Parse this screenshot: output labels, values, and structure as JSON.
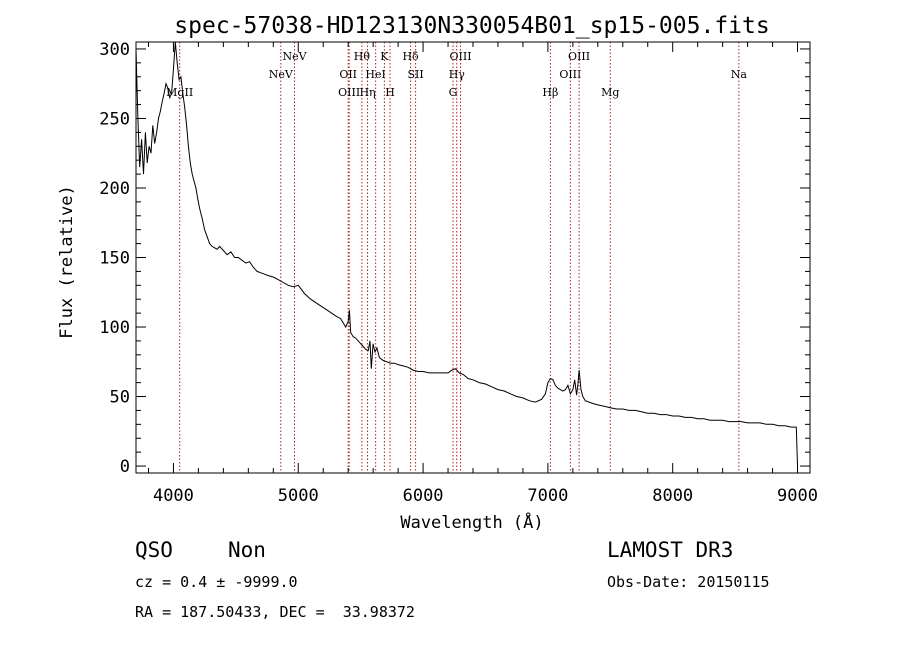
{
  "chart_data": {
    "type": "line",
    "title": "spec-57038-HD123130N330054B01_sp15-005.fits",
    "xlabel": "Wavelength (Å)",
    "ylabel": "Flux (relative)",
    "xlim": [
      3700,
      9100
    ],
    "ylim": [
      -5,
      305
    ],
    "xticks": [
      4000,
      5000,
      6000,
      7000,
      8000,
      9000
    ],
    "yticks": [
      0,
      50,
      100,
      150,
      200,
      250,
      300
    ],
    "spectrum": {
      "x": [
        3700,
        3715,
        3730,
        3745,
        3760,
        3775,
        3790,
        3805,
        3820,
        3835,
        3850,
        3865,
        3880,
        3895,
        3910,
        3925,
        3940,
        3955,
        3970,
        3985,
        4000,
        4015,
        4030,
        4045,
        4060,
        4075,
        4090,
        4105,
        4120,
        4135,
        4150,
        4165,
        4180,
        4195,
        4210,
        4230,
        4250,
        4270,
        4290,
        4310,
        4330,
        4350,
        4370,
        4400,
        4430,
        4460,
        4490,
        4520,
        4550,
        4580,
        4610,
        4640,
        4670,
        4700,
        4730,
        4760,
        4800,
        4840,
        4880,
        4920,
        4960,
        5000,
        5050,
        5100,
        5150,
        5200,
        5250,
        5300,
        5340,
        5380,
        5400,
        5410,
        5420,
        5440,
        5460,
        5480,
        5500,
        5520,
        5540,
        5560,
        5575,
        5585,
        5600,
        5615,
        5630,
        5650,
        5680,
        5710,
        5740,
        5770,
        5800,
        5840,
        5880,
        5920,
        5960,
        6000,
        6050,
        6100,
        6150,
        6200,
        6230,
        6260,
        6290,
        6320,
        6360,
        6400,
        6450,
        6500,
        6550,
        6600,
        6650,
        6700,
        6750,
        6800,
        6850,
        6900,
        6950,
        6980,
        7000,
        7020,
        7040,
        7060,
        7080,
        7100,
        7120,
        7140,
        7160,
        7180,
        7200,
        7215,
        7230,
        7240,
        7250,
        7265,
        7280,
        7300,
        7330,
        7360,
        7400,
        7450,
        7500,
        7550,
        7600,
        7650,
        7700,
        7750,
        7800,
        7850,
        7900,
        7950,
        8000,
        8050,
        8100,
        8150,
        8200,
        8250,
        8300,
        8350,
        8400,
        8450,
        8500,
        8550,
        8600,
        8650,
        8700,
        8750,
        8800,
        8850,
        8900,
        8950,
        8990,
        9000
      ],
      "y": [
        300,
        250,
        215,
        235,
        210,
        240,
        218,
        230,
        225,
        245,
        232,
        240,
        250,
        255,
        262,
        268,
        275,
        272,
        265,
        268,
        285,
        305,
        290,
        278,
        280,
        268,
        258,
        245,
        230,
        218,
        210,
        205,
        200,
        192,
        185,
        178,
        170,
        165,
        160,
        158,
        157,
        156,
        158,
        155,
        152,
        154,
        150,
        150,
        148,
        146,
        147,
        143,
        140,
        139,
        138,
        137,
        136,
        134,
        132,
        130,
        129,
        130,
        124,
        120,
        117,
        114,
        111,
        108,
        106,
        100,
        104,
        112,
        96,
        93,
        92,
        90,
        88,
        86,
        84,
        83,
        90,
        70,
        88,
        82,
        85,
        78,
        76,
        75,
        74,
        74,
        73,
        72,
        71,
        69,
        68,
        68,
        67,
        67,
        67,
        67,
        69,
        70,
        67,
        66,
        63,
        62,
        60,
        59,
        57,
        55,
        54,
        52,
        50,
        49,
        47,
        46,
        48,
        52,
        60,
        63,
        62,
        58,
        56,
        55,
        54,
        55,
        58,
        52,
        55,
        62,
        51,
        58,
        69,
        55,
        50,
        47,
        46,
        45,
        44,
        43,
        42,
        41,
        41,
        40,
        40,
        39,
        38,
        38,
        37,
        37,
        36,
        36,
        35,
        35,
        34,
        34,
        33,
        33,
        33,
        32,
        32,
        32,
        31,
        31,
        31,
        30,
        30,
        29,
        29,
        28,
        28,
        0
      ]
    },
    "emission_lines": [
      {
        "label": "MgII",
        "x": 4050,
        "row": 3
      },
      {
        "label": "NeV",
        "x": 4860,
        "row": 2
      },
      {
        "label": "NeV",
        "x": 4970,
        "row": 1
      },
      {
        "label": "OII",
        "x": 5400,
        "row": 2
      },
      {
        "label": "OIII",
        "x": 5408,
        "row": 3
      },
      {
        "label": "Hθ",
        "x": 5510,
        "row": 1
      },
      {
        "label": "Hη",
        "x": 5555,
        "row": 3
      },
      {
        "label": "HeI",
        "x": 5620,
        "row": 2
      },
      {
        "label": "K",
        "x": 5690,
        "row": 1
      },
      {
        "label": "H",
        "x": 5735,
        "row": 3
      },
      {
        "label": "Hδ",
        "x": 5900,
        "row": 1
      },
      {
        "label": "SII",
        "x": 5940,
        "row": 2
      },
      {
        "label": "G",
        "x": 6240,
        "row": 3
      },
      {
        "label": "Hγ",
        "x": 6270,
        "row": 2
      },
      {
        "label": "OIII",
        "x": 6300,
        "row": 1
      },
      {
        "label": "Hβ",
        "x": 7020,
        "row": 3
      },
      {
        "label": "OIII",
        "x": 7180,
        "row": 2
      },
      {
        "label": "OIII",
        "x": 7250,
        "row": 1
      },
      {
        "label": "Mg",
        "x": 7500,
        "row": 3
      },
      {
        "label": "Na",
        "x": 8530,
        "row": 2
      }
    ]
  },
  "colors": {
    "line_marker": "#b22222",
    "spectrum": "#000000",
    "axes": "#000000"
  },
  "info": {
    "class": "QSO",
    "subclass": "Non",
    "survey": "LAMOST DR3",
    "cz": "cz = 0.4 ± -9999.0",
    "obs_date": "Obs-Date: 20150115",
    "radec": "RA = 187.50433, DEC =  33.98372"
  }
}
